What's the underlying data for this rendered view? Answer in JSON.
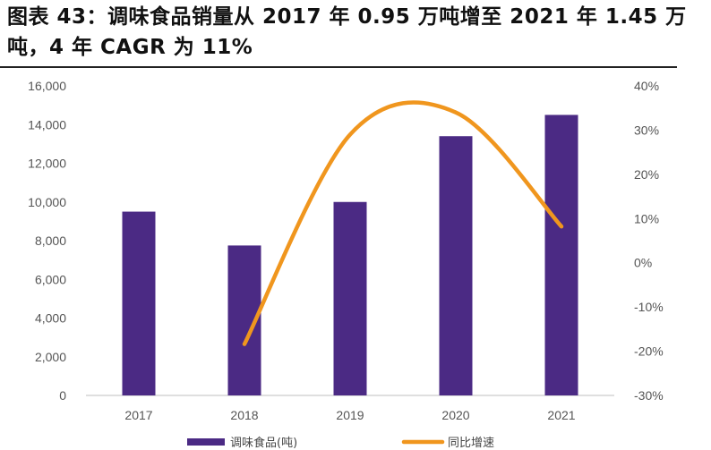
{
  "title": "图表 43：调味食品销量从 2017 年 0.95 万吨增至 2021 年 1.45 万吨，4 年 CAGR 为 11%",
  "chart_data": {
    "type": "bar",
    "categories": [
      "2017",
      "2018",
      "2019",
      "2020",
      "2021"
    ],
    "series": [
      {
        "name": "调味食品(吨)",
        "type": "bar",
        "axis": "left",
        "color": "#4B2A84",
        "values": [
          9500,
          7750,
          10000,
          13400,
          14500
        ]
      },
      {
        "name": "同比增速",
        "type": "line",
        "axis": "right",
        "color": "#F0961E",
        "smooth": true,
        "values": [
          null,
          -18.4,
          29.0,
          34.0,
          8.2
        ]
      }
    ],
    "y_left": {
      "min": 0,
      "max": 16000,
      "step": 2000,
      "ticks": [
        "0",
        "2,000",
        "4,000",
        "6,000",
        "8,000",
        "10,000",
        "12,000",
        "14,000",
        "16,000"
      ]
    },
    "y_right": {
      "min": -30,
      "max": 40,
      "step": 10,
      "ticks": [
        "-30%",
        "-20%",
        "-10%",
        "0%",
        "10%",
        "20%",
        "30%",
        "40%"
      ]
    },
    "legend_position": "bottom",
    "grid": false
  }
}
